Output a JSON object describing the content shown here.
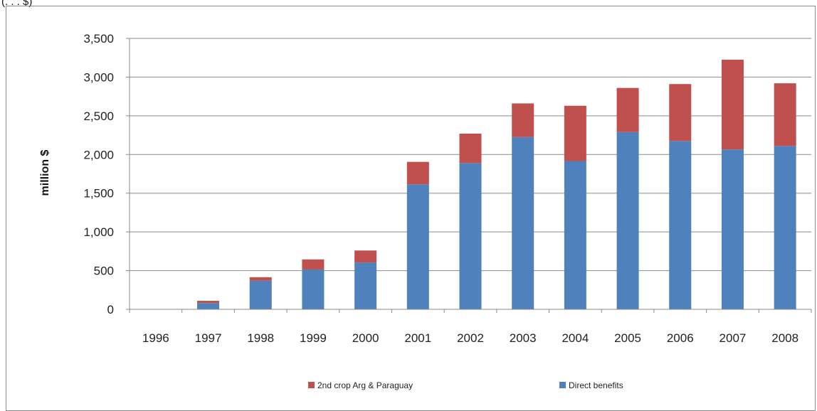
{
  "header_fragment": "(. . . $)",
  "chart_data": {
    "type": "bar",
    "stacked": true,
    "categories": [
      "1996",
      "1997",
      "1998",
      "1999",
      "2000",
      "2001",
      "2002",
      "2003",
      "2004",
      "2005",
      "2006",
      "2007",
      "2008"
    ],
    "series": [
      {
        "name": "Direct benefits",
        "color": "#4f81bd",
        "values": [
          0,
          80,
          370,
          515,
          605,
          1615,
          1890,
          2225,
          1915,
          2290,
          2175,
          2065,
          2110
        ]
      },
      {
        "name": "2nd crop Arg & Paraguay",
        "color": "#c0504d",
        "values": [
          0,
          30,
          45,
          130,
          155,
          290,
          380,
          435,
          715,
          570,
          735,
          1160,
          810
        ]
      }
    ],
    "ylabel": "million $",
    "ylim": [
      0,
      3500
    ],
    "yticks": [
      0,
      500,
      1000,
      1500,
      2000,
      2500,
      3000,
      3500
    ],
    "ytick_labels": [
      "0",
      "500",
      "1,000",
      "1,500",
      "2,000",
      "2,500",
      "3,000",
      "3,500"
    ],
    "grid": true,
    "legend_position": "bottom",
    "legend_order": [
      "2nd crop Arg & Paraguay",
      "Direct benefits"
    ]
  }
}
